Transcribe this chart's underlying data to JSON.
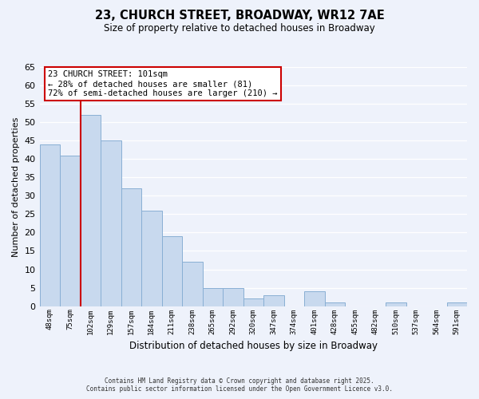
{
  "title": "23, CHURCH STREET, BROADWAY, WR12 7AE",
  "subtitle": "Size of property relative to detached houses in Broadway",
  "xlabel": "Distribution of detached houses by size in Broadway",
  "ylabel": "Number of detached properties",
  "bar_labels": [
    "48sqm",
    "75sqm",
    "102sqm",
    "129sqm",
    "157sqm",
    "184sqm",
    "211sqm",
    "238sqm",
    "265sqm",
    "292sqm",
    "320sqm",
    "347sqm",
    "374sqm",
    "401sqm",
    "428sqm",
    "455sqm",
    "482sqm",
    "510sqm",
    "537sqm",
    "564sqm",
    "591sqm"
  ],
  "bar_values": [
    44,
    41,
    52,
    45,
    32,
    26,
    19,
    12,
    5,
    5,
    2,
    3,
    0,
    4,
    1,
    0,
    0,
    1,
    0,
    0,
    1
  ],
  "bar_color": "#c8d9ee",
  "bar_edge_color": "#89afd4",
  "highlight_bar_index": 2,
  "highlight_line_color": "#cc0000",
  "ylim": [
    0,
    65
  ],
  "yticks": [
    0,
    5,
    10,
    15,
    20,
    25,
    30,
    35,
    40,
    45,
    50,
    55,
    60,
    65
  ],
  "annotation_title": "23 CHURCH STREET: 101sqm",
  "annotation_line1": "← 28% of detached houses are smaller (81)",
  "annotation_line2": "72% of semi-detached houses are larger (210) →",
  "annotation_box_color": "#ffffff",
  "annotation_box_edge": "#cc0000",
  "bg_color": "#eef2fb",
  "grid_color": "#ffffff",
  "footer_line1": "Contains HM Land Registry data © Crown copyright and database right 2025.",
  "footer_line2": "Contains public sector information licensed under the Open Government Licence v3.0."
}
